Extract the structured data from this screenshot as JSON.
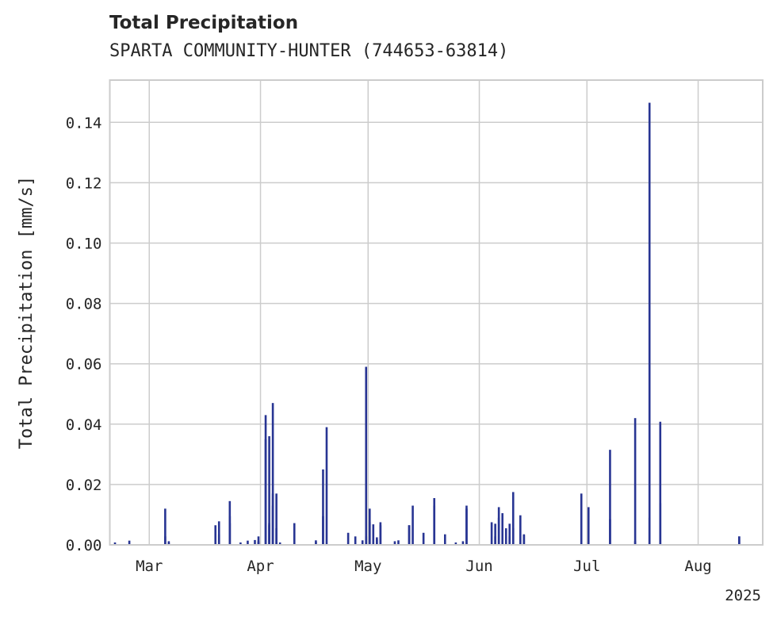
{
  "chart_data": {
    "type": "bar",
    "title": "Total Precipitation",
    "subtitle": "SPARTA COMMUNITY-HUNTER (744653-63814)",
    "xlabel": "",
    "ylabel": "Total Precipitation [mm/s]",
    "xlim": [
      "2025-02-18",
      "2025-08-19"
    ],
    "ylim": [
      0,
      0.154
    ],
    "y_ticks": [
      0.0,
      0.02,
      0.04,
      0.06,
      0.08,
      0.1,
      0.12,
      0.14
    ],
    "y_tick_labels": [
      "0.00",
      "0.02",
      "0.04",
      "0.06",
      "0.08",
      "0.10",
      "0.12",
      "0.14"
    ],
    "x_ticks": [
      "2025-03-01",
      "2025-04-01",
      "2025-05-01",
      "2025-06-01",
      "2025-07-01",
      "2025-08-01"
    ],
    "x_tick_labels": [
      "Mar",
      "Apr",
      "May",
      "Jun",
      "Jul",
      "Aug"
    ],
    "x_offset_label": "2025",
    "grid": true,
    "color": "#283593",
    "series": [
      {
        "x": [
          "2025-02-19",
          "2025-02-23",
          "2025-03-05",
          "2025-03-05",
          "2025-03-06",
          "2025-03-06",
          "2025-03-19",
          "2025-03-20",
          "2025-03-20",
          "2025-03-23",
          "2025-03-23",
          "2025-03-23",
          "2025-03-26",
          "2025-03-28",
          "2025-03-30",
          "2025-03-31",
          "2025-03-31",
          "2025-03-31",
          "2025-04-02",
          "2025-04-02",
          "2025-04-03",
          "2025-04-03",
          "2025-04-03",
          "2025-04-04",
          "2025-04-04",
          "2025-04-04",
          "2025-04-05",
          "2025-04-05",
          "2025-04-06",
          "2025-04-10",
          "2025-04-16",
          "2025-04-16",
          "2025-04-18",
          "2025-04-18",
          "2025-04-19",
          "2025-04-25",
          "2025-04-27",
          "2025-04-29",
          "2025-04-30",
          "2025-04-30",
          "2025-05-01",
          "2025-05-01",
          "2025-05-02",
          "2025-05-03",
          "2025-05-03",
          "2025-05-04",
          "2025-05-04",
          "2025-05-08",
          "2025-05-09",
          "2025-05-12",
          "2025-05-12",
          "2025-05-13",
          "2025-05-16",
          "2025-05-19",
          "2025-05-19",
          "2025-05-22",
          "2025-05-25",
          "2025-05-27",
          "2025-05-28",
          "2025-05-28",
          "2025-06-04",
          "2025-06-05",
          "2025-06-05",
          "2025-06-06",
          "2025-06-06",
          "2025-06-07",
          "2025-06-08",
          "2025-06-09",
          "2025-06-09",
          "2025-06-10",
          "2025-06-10",
          "2025-06-12",
          "2025-06-13",
          "2025-06-13",
          "2025-06-29",
          "2025-07-01",
          "2025-07-07",
          "2025-07-07",
          "2025-07-14",
          "2025-07-14",
          "2025-07-18",
          "2025-07-18",
          "2025-07-21",
          "2025-07-21",
          "2025-08-12",
          "2025-08-12"
        ],
        "values": [
          0.0008,
          0.0014,
          0.0028,
          0.012,
          0.0012,
          0.0006,
          0.0065,
          0.0035,
          0.0078,
          0.0145,
          0.0095,
          0.0072,
          0.0008,
          0.0014,
          0.0016,
          0.0028,
          0.0012,
          0.0008,
          0.043,
          0.035,
          0.0065,
          0.0072,
          0.036,
          0.047,
          0.013,
          0.017,
          0.017,
          0.0055,
          0.0008,
          0.0072,
          0.0015,
          0.001,
          0.025,
          0.0095,
          0.039,
          0.004,
          0.0028,
          0.0015,
          0.0028,
          0.059,
          0.0075,
          0.012,
          0.0068,
          0.0018,
          0.0025,
          0.0075,
          0.0065,
          0.0012,
          0.0015,
          0.0065,
          0.0065,
          0.013,
          0.004,
          0.0155,
          0.013,
          0.0035,
          0.0008,
          0.0012,
          0.012,
          0.013,
          0.0075,
          0.0028,
          0.007,
          0.0125,
          0.009,
          0.0105,
          0.0055,
          0.0028,
          0.007,
          0.0175,
          0.0055,
          0.0098,
          0.0032,
          0.0035,
          0.017,
          0.0125,
          0.0085,
          0.0315,
          0.042,
          0.0012,
          0.1465,
          0.009,
          0.0408,
          0.0138,
          0.0028,
          0.0028
        ]
      }
    ]
  }
}
